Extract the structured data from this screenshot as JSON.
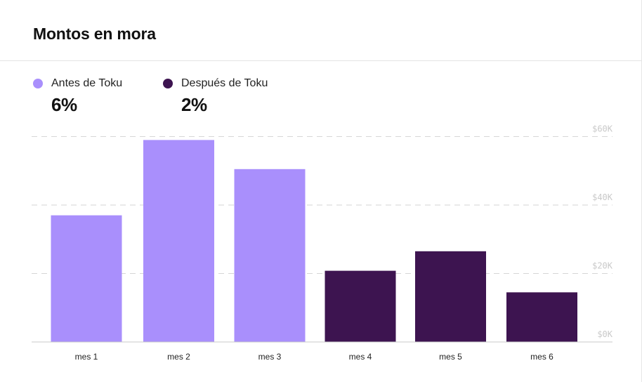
{
  "card": {
    "title": "Montos en mora"
  },
  "legend": [
    {
      "label": "Antes de Toku",
      "value": "6%",
      "color": "#a98ffc"
    },
    {
      "label": "Después de Toku",
      "value": "2%",
      "color": "#3d1450"
    }
  ],
  "chart_data": {
    "type": "bar",
    "title": "Montos en mora",
    "categories": [
      "mes 1",
      "mes 2",
      "mes 3",
      "mes 4",
      "mes 5",
      "mes 6"
    ],
    "values": [
      37000,
      59000,
      50500,
      20800,
      26500,
      14500
    ],
    "bar_groups": [
      "Antes de Toku",
      "Antes de Toku",
      "Antes de Toku",
      "Después de Toku",
      "Después de Toku",
      "Después de Toku"
    ],
    "colors": {
      "Antes de Toku": "#a98ffc",
      "Después de Toku": "#3d1450"
    },
    "y_ticks": [
      0,
      20000,
      40000,
      60000
    ],
    "y_tick_labels": [
      "$0K",
      "$20K",
      "$40K",
      "$60K"
    ],
    "ylim": [
      0,
      61000
    ],
    "xlabel": "",
    "ylabel": "",
    "grid": true,
    "grid_style": "dashed",
    "y_axis_position": "right"
  }
}
